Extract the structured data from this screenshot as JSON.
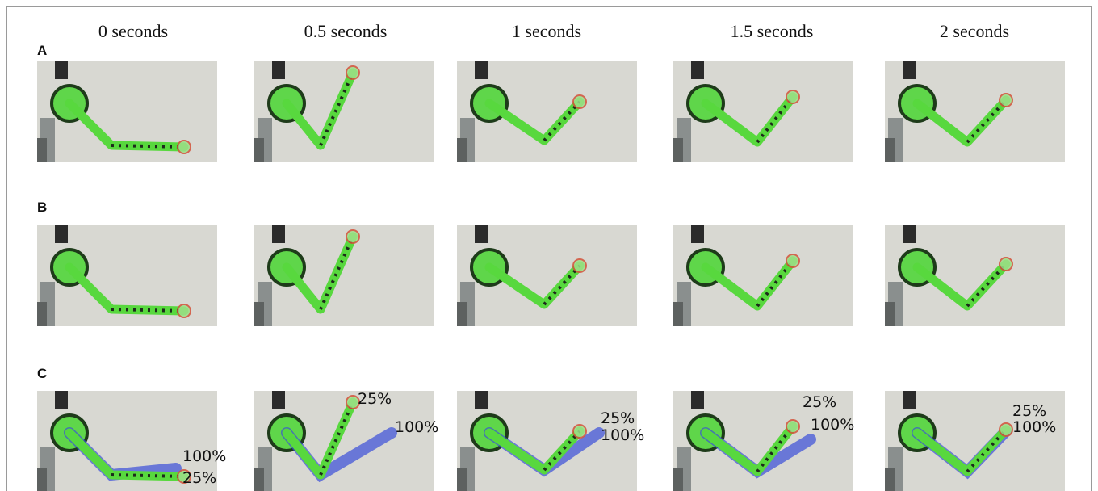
{
  "column_headers": [
    "0 seconds",
    "0.5 seconds",
    "1 seconds",
    "1.5 seconds",
    "2 seconds"
  ],
  "rows": [
    {
      "label": "A"
    },
    {
      "label": "B"
    },
    {
      "label": "C",
      "annotations": [
        [
          "100%",
          "25%"
        ],
        [
          "25%",
          "100%"
        ],
        [
          "25%",
          "100%"
        ],
        [
          "25%",
          "100%"
        ],
        [
          "25%",
          "100%"
        ]
      ]
    }
  ]
}
